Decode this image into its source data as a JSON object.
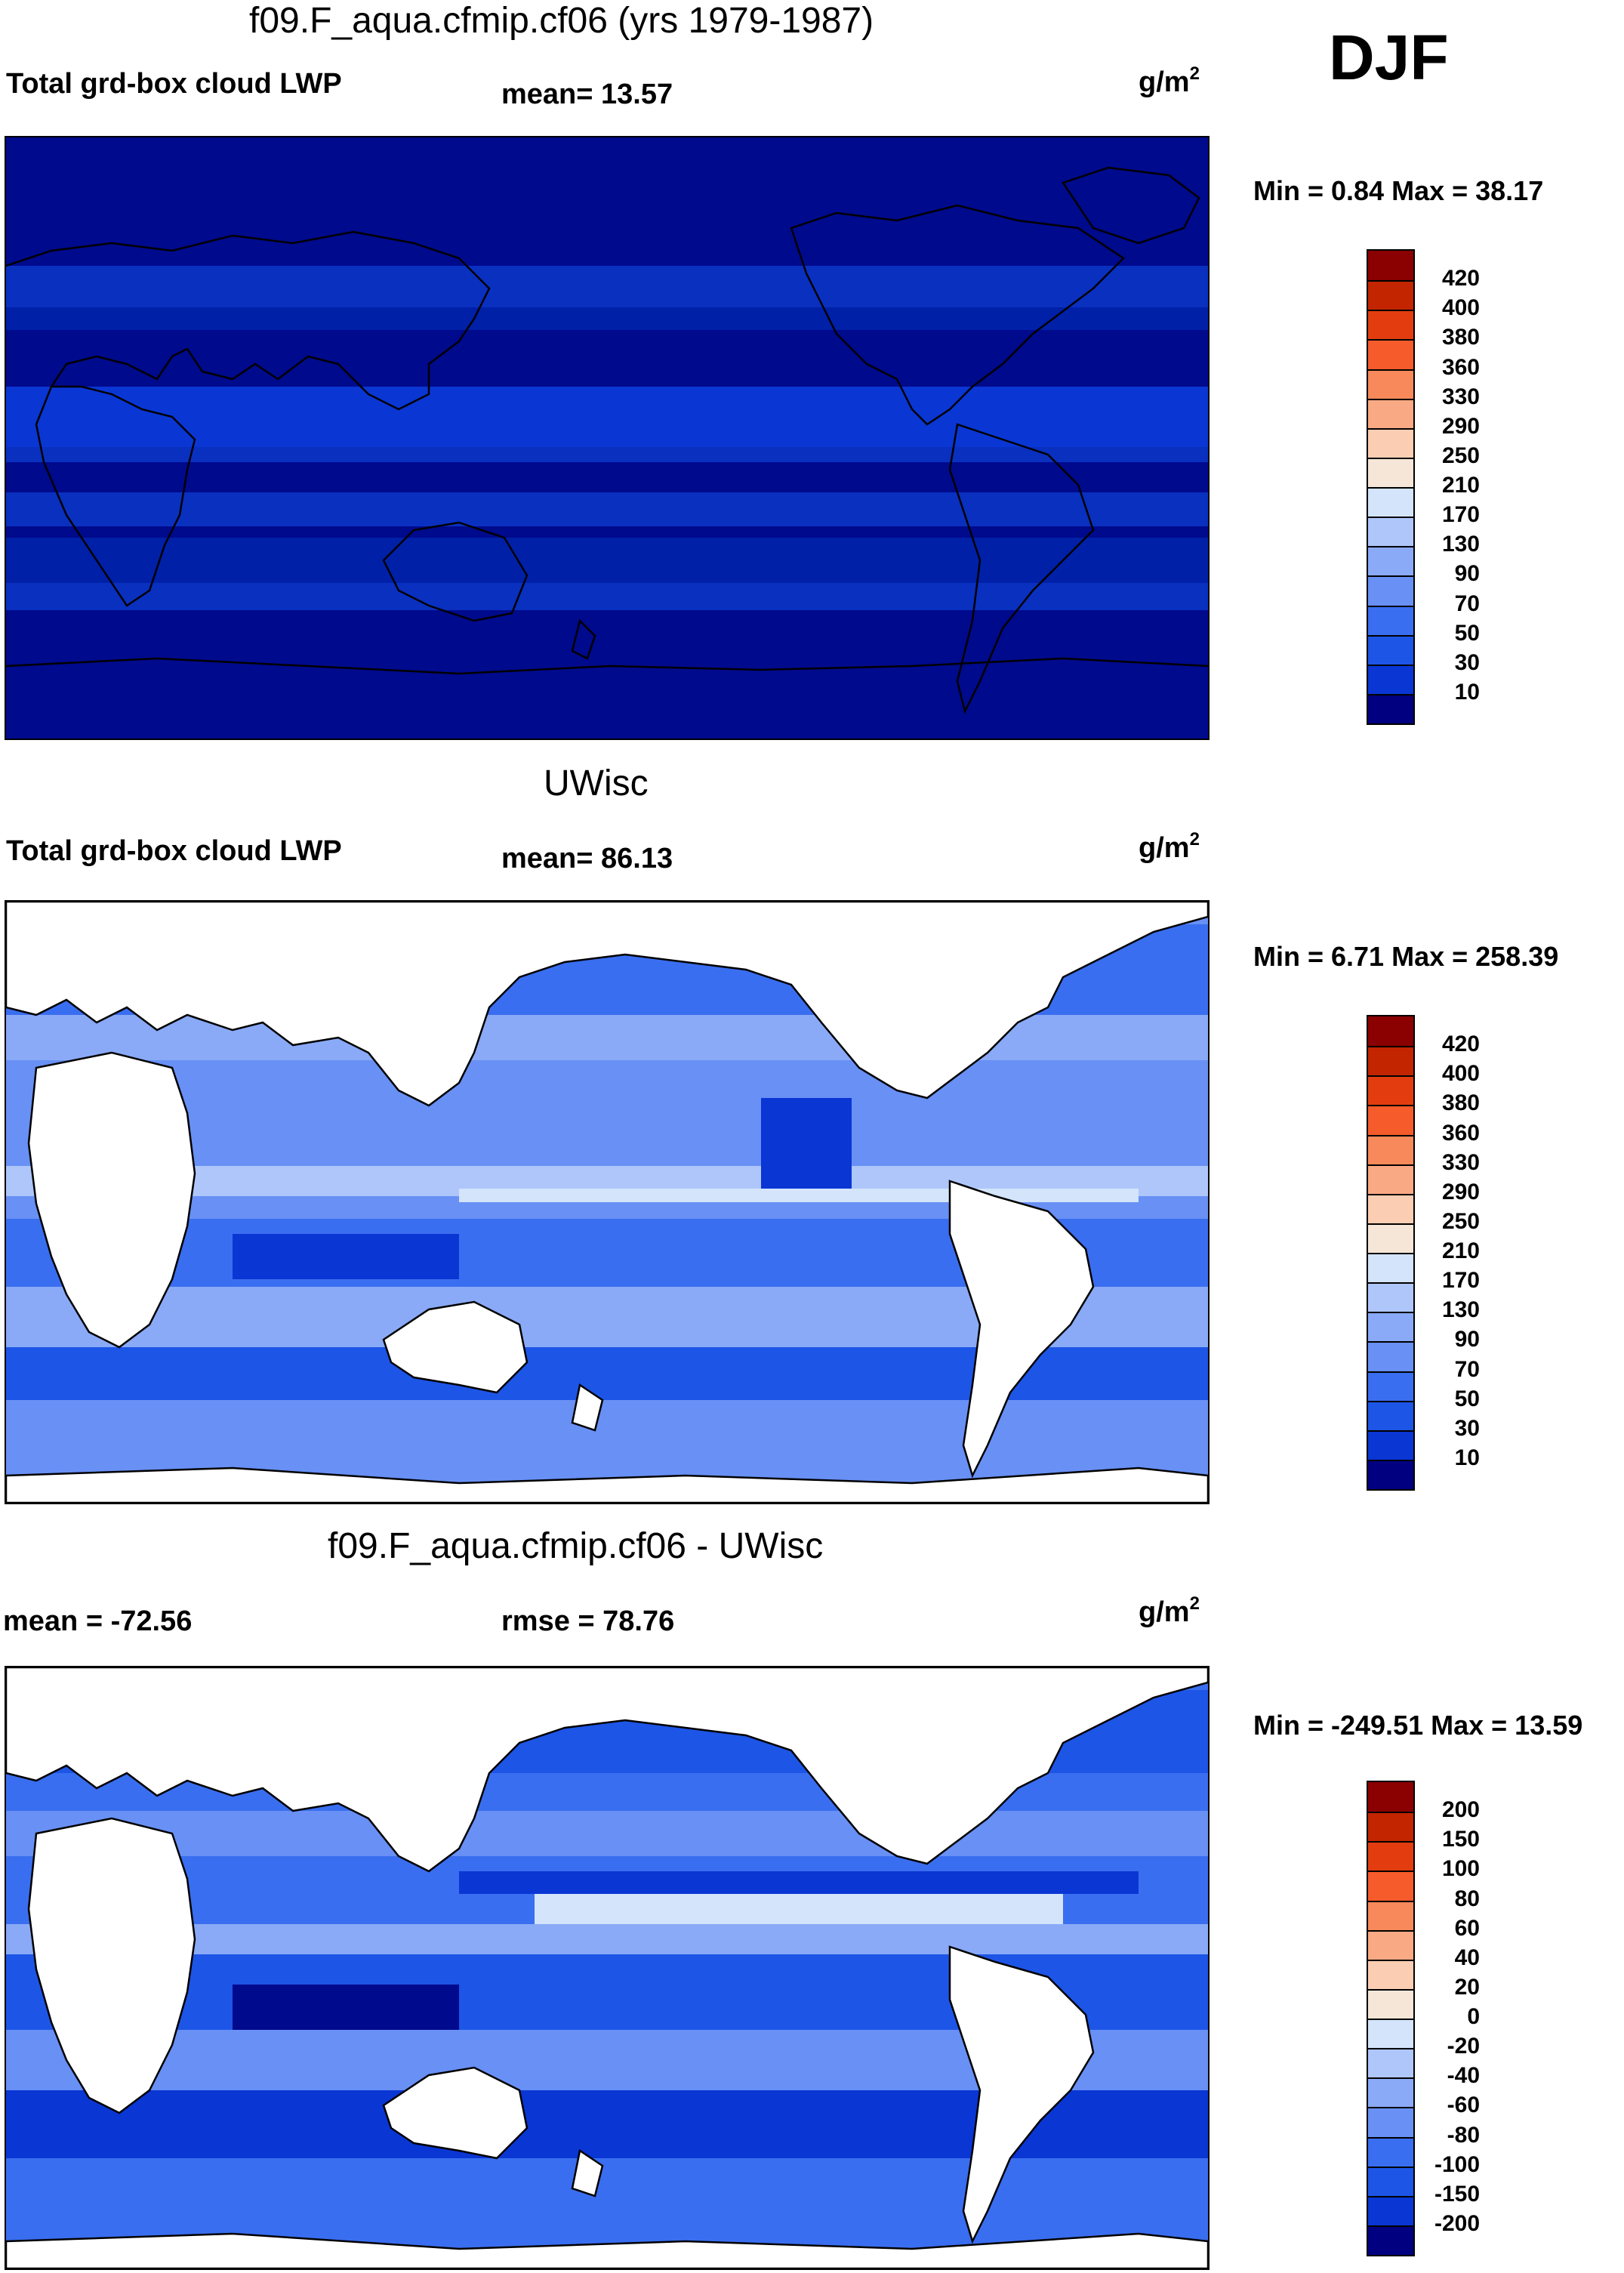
{
  "season": "DJF",
  "colors": {
    "deep_blue": "#000a8c",
    "blue_scale": [
      "#000080",
      "#0020b8",
      "#0a36d4",
      "#1d55e6",
      "#3a6ef0",
      "#6890f5",
      "#8aaaf7",
      "#aec6fa",
      "#d3e4fb"
    ],
    "warm_scale": [
      "#f6e6d8",
      "#fbcdb3",
      "#f9a983",
      "#f7895a",
      "#f55b2b",
      "#e33d0f",
      "#c22500",
      "#8b0000"
    ],
    "land": "#ffffff"
  },
  "panels": [
    {
      "title": "f09.F_aqua.cfmip.cf06 (yrs 1979-1987)",
      "left_label": "Total grd-box cloud LWP",
      "center_label": "mean=  13.57",
      "units_base": "g/m",
      "units_exp": "2",
      "minmax": "Min =   0.84 Max =  38.17",
      "colorbar_labels": [
        "420",
        "400",
        "380",
        "360",
        "330",
        "290",
        "250",
        "210",
        "170",
        "130",
        "90",
        "70",
        "50",
        "30",
        "10"
      ],
      "colorbar_colors": [
        "#8b0000",
        "#c22500",
        "#e33d0f",
        "#f55b2b",
        "#f7895a",
        "#f9a983",
        "#fbcdb3",
        "#f6e6d8",
        "#d3e4fb",
        "#aec6fa",
        "#8aaaf7",
        "#6890f5",
        "#3a6ef0",
        "#1d55e6",
        "#0a36d4",
        "#000080"
      ]
    },
    {
      "title": "UWisc",
      "left_label": "Total grd-box cloud LWP",
      "center_label": "mean=  86.13",
      "units_base": "g/m",
      "units_exp": "2",
      "minmax": "Min =   6.71 Max = 258.39",
      "colorbar_labels": [
        "420",
        "400",
        "380",
        "360",
        "330",
        "290",
        "250",
        "210",
        "170",
        "130",
        "90",
        "70",
        "50",
        "30",
        "10"
      ],
      "colorbar_colors": [
        "#8b0000",
        "#c22500",
        "#e33d0f",
        "#f55b2b",
        "#f7895a",
        "#f9a983",
        "#fbcdb3",
        "#f6e6d8",
        "#d3e4fb",
        "#aec6fa",
        "#8aaaf7",
        "#6890f5",
        "#3a6ef0",
        "#1d55e6",
        "#0a36d4",
        "#000080"
      ]
    },
    {
      "title": "f09.F_aqua.cfmip.cf06 - UWisc",
      "left_label": "mean = -72.56",
      "center_label": "rmse =  78.76",
      "units_base": "g/m",
      "units_exp": "2",
      "minmax": "Min = -249.51 Max =  13.59",
      "colorbar_labels": [
        "200",
        "150",
        "100",
        "80",
        "60",
        "40",
        "20",
        "0",
        "-20",
        "-40",
        "-60",
        "-80",
        "-100",
        "-150",
        "-200"
      ],
      "colorbar_colors": [
        "#8b0000",
        "#c22500",
        "#e33d0f",
        "#f55b2b",
        "#f7895a",
        "#f9a983",
        "#fbcdb3",
        "#f6e6d8",
        "#d3e4fb",
        "#aec6fa",
        "#8aaaf7",
        "#6890f5",
        "#3a6ef0",
        "#1d55e6",
        "#0a36d4",
        "#000080"
      ]
    }
  ]
}
